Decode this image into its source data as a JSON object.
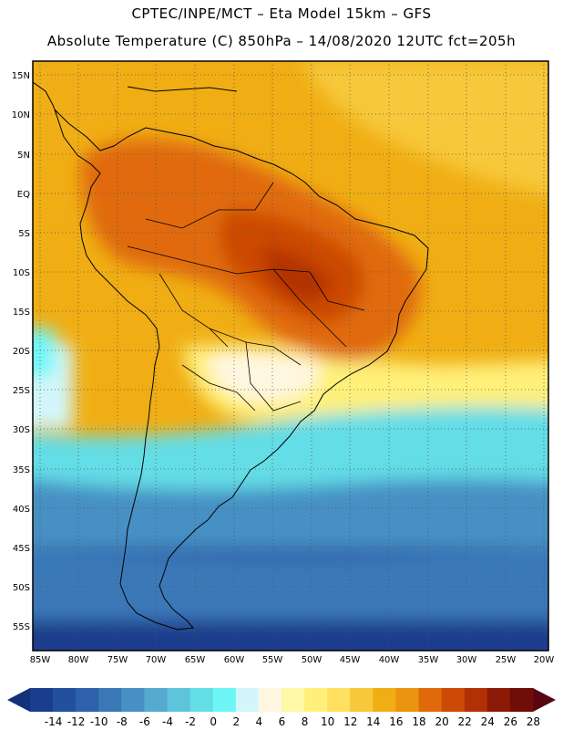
{
  "header": {
    "line1": "CPTEC/INPE/MCT –  Eta Model 15km – GFS",
    "line2": "Absolute Temperature (C) 850hPa – 14/08/2020 12UTC fct=205h"
  },
  "map": {
    "lat_labels": [
      "15N",
      "10N",
      "5N",
      "EQ",
      "5S",
      "10S",
      "15S",
      "20S",
      "25S",
      "30S",
      "35S",
      "40S",
      "45S",
      "50S",
      "55S"
    ],
    "lon_labels": [
      "85W",
      "80W",
      "75W",
      "70W",
      "65W",
      "60W",
      "55W",
      "50W",
      "45W",
      "40W",
      "35W",
      "30W",
      "25W",
      "20W"
    ]
  },
  "colorbar": {
    "labels": [
      "-14",
      "-12",
      "-10",
      "-8",
      "-6",
      "-4",
      "-2",
      "0",
      "2",
      "4",
      "6",
      "8",
      "10",
      "12",
      "14",
      "16",
      "18",
      "20",
      "22",
      "24",
      "26",
      "28"
    ],
    "colors": [
      "#1a3d8c",
      "#22509e",
      "#2d62ab",
      "#3a78b8",
      "#4790c4",
      "#56aad0",
      "#5fc3dc",
      "#63dde6",
      "#6ef6f6",
      "#d2f6fa",
      "#fff6e0",
      "#fff8a6",
      "#fff07a",
      "#ffe060",
      "#f7c83a",
      "#f0ae14",
      "#ec9410",
      "#e06a0a",
      "#cc4a06",
      "#b23004",
      "#8c1a06",
      "#6e0e06"
    ],
    "end_low": "#13307a",
    "end_high": "#5a0612"
  }
}
